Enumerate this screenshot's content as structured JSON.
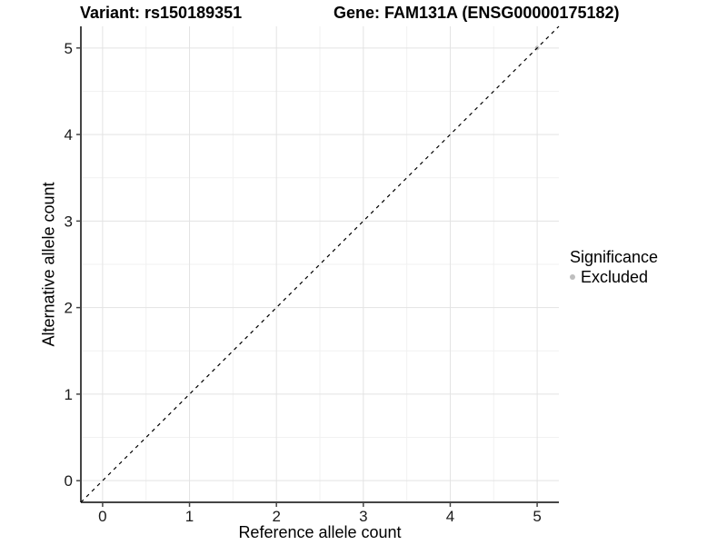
{
  "figure": {
    "title_left": "Variant: rs150189351",
    "title_right": "Gene: FAM131A (ENSG00000175182)"
  },
  "chart_data": {
    "type": "scatter",
    "title_left": "Variant: rs150189351",
    "title_right": "Gene: FAM131A (ENSG00000175182)",
    "xlabel": "Reference allele count",
    "ylabel": "Alternative allele count",
    "xlim": [
      -0.25,
      5.25
    ],
    "ylim": [
      -0.25,
      5.25
    ],
    "xticks": [
      0,
      1,
      2,
      3,
      4,
      5
    ],
    "yticks": [
      0,
      1,
      2,
      3,
      4,
      5
    ],
    "minor_ticks": [
      0.5,
      1.5,
      2.5,
      3.5,
      4.5
    ],
    "grid": true,
    "points": [
      {
        "x": 5,
        "y": 5,
        "series": "Excluded"
      }
    ],
    "reference_line": {
      "type": "identity",
      "slope": 1,
      "intercept": 0,
      "style": "dashed",
      "color": "#000000"
    },
    "legend": {
      "title": "Significance",
      "position": "right",
      "items": [
        {
          "label": "Excluded",
          "color": "#bebebe"
        }
      ]
    },
    "colors": {
      "background": "#ffffff",
      "grid_major": "#e3e3e3",
      "grid_minor": "#f1f1f1",
      "axis_line": "#454545",
      "tick_text": "#1a1a1a",
      "point_excluded": "#bebebe"
    }
  }
}
